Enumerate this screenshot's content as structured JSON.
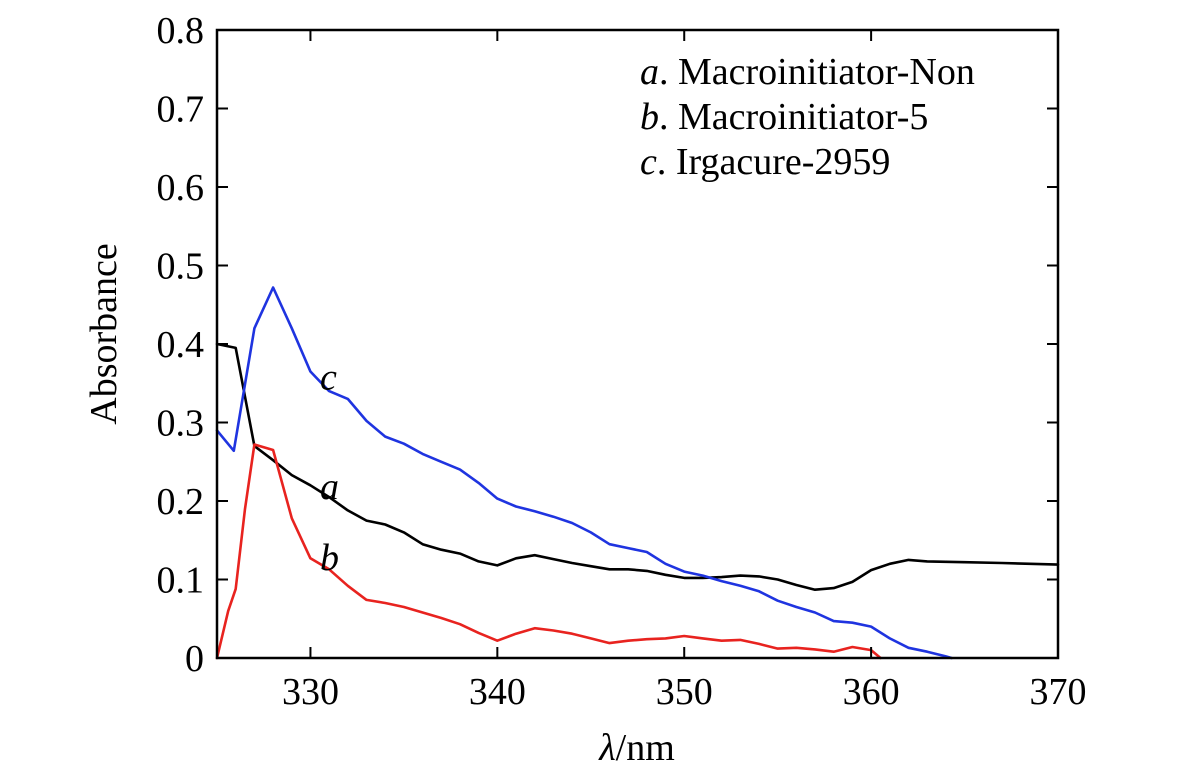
{
  "chart_data": {
    "type": "line",
    "xlabel_symbol": "λ",
    "xlabel_unit": "/nm",
    "ylabel": "Absorbance",
    "xlim": [
      325,
      370
    ],
    "ylim": [
      0,
      0.8
    ],
    "x_ticks": [
      330,
      340,
      350,
      360,
      370
    ],
    "y_ticks": [
      {
        "value": 0,
        "label": "0"
      },
      {
        "value": 0.1,
        "label": "0.1"
      },
      {
        "value": 0.2,
        "label": "0.2"
      },
      {
        "value": 0.3,
        "label": "0.3"
      },
      {
        "value": 0.4,
        "label": "0.4"
      },
      {
        "value": 0.5,
        "label": "0.5"
      },
      {
        "value": 0.6,
        "label": "0.6"
      },
      {
        "value": 0.7,
        "label": "0.7"
      },
      {
        "value": 0.8,
        "label": "0.8"
      }
    ],
    "legend_position": "top-right",
    "series": [
      {
        "key": "a",
        "letter": "a",
        "name": ". Macroinitiator-Non",
        "color": "#000000",
        "label_at": {
          "x": 326.5,
          "y": 0.215
        },
        "points": [
          [
            325,
            0.4
          ],
          [
            326,
            0.395
          ],
          [
            327,
            0.27
          ],
          [
            328,
            0.252
          ],
          [
            329,
            0.233
          ],
          [
            330,
            0.22
          ],
          [
            331,
            0.205
          ],
          [
            332,
            0.188
          ],
          [
            333,
            0.175
          ],
          [
            334,
            0.17
          ],
          [
            335,
            0.16
          ],
          [
            336,
            0.145
          ],
          [
            337,
            0.138
          ],
          [
            338,
            0.133
          ],
          [
            339,
            0.123
          ],
          [
            340,
            0.118
          ],
          [
            341,
            0.127
          ],
          [
            342,
            0.131
          ],
          [
            343,
            0.126
          ],
          [
            344,
            0.121
          ],
          [
            345,
            0.117
          ],
          [
            346,
            0.113
          ],
          [
            347,
            0.113
          ],
          [
            348,
            0.111
          ],
          [
            349,
            0.106
          ],
          [
            350,
            0.102
          ],
          [
            351,
            0.102
          ],
          [
            352,
            0.103
          ],
          [
            353,
            0.105
          ],
          [
            354,
            0.104
          ],
          [
            355,
            0.1
          ],
          [
            356,
            0.093
          ],
          [
            357,
            0.087
          ],
          [
            358,
            0.089
          ],
          [
            359,
            0.097
          ],
          [
            360,
            0.112
          ],
          [
            361,
            0.12
          ],
          [
            362,
            0.125
          ],
          [
            363,
            0.123
          ],
          [
            365,
            0.122
          ],
          [
            367,
            0.121
          ],
          [
            370,
            0.119
          ]
        ]
      },
      {
        "key": "b",
        "letter": "b",
        "name": ". Macroinitiator-5",
        "color": "#e8231f",
        "label_at": {
          "x": 326.5,
          "y": 0.125
        },
        "points": [
          [
            325,
            0.0
          ],
          [
            325.6,
            0.06
          ],
          [
            326,
            0.088
          ],
          [
            326.5,
            0.19
          ],
          [
            327,
            0.272
          ],
          [
            328,
            0.265
          ],
          [
            329,
            0.178
          ],
          [
            330,
            0.127
          ],
          [
            331,
            0.113
          ],
          [
            332,
            0.092
          ],
          [
            333,
            0.074
          ],
          [
            334,
            0.07
          ],
          [
            335,
            0.065
          ],
          [
            336,
            0.058
          ],
          [
            337,
            0.051
          ],
          [
            338,
            0.043
          ],
          [
            339,
            0.032
          ],
          [
            340,
            0.022
          ],
          [
            341,
            0.031
          ],
          [
            342,
            0.038
          ],
          [
            343,
            0.035
          ],
          [
            344,
            0.031
          ],
          [
            345,
            0.025
          ],
          [
            346,
            0.019
          ],
          [
            347,
            0.022
          ],
          [
            348,
            0.024
          ],
          [
            349,
            0.025
          ],
          [
            350,
            0.028
          ],
          [
            351,
            0.025
          ],
          [
            352,
            0.022
          ],
          [
            353,
            0.023
          ],
          [
            354,
            0.018
          ],
          [
            355,
            0.012
          ],
          [
            356,
            0.013
          ],
          [
            357,
            0.011
          ],
          [
            358,
            0.008
          ],
          [
            359,
            0.014
          ],
          [
            360,
            0.01
          ],
          [
            360.5,
            0.0
          ]
        ]
      },
      {
        "key": "c",
        "letter": "c",
        "name": ". Irgacure-2959",
        "color": "#1f34e0",
        "label_at": {
          "x": 326.5,
          "y": 0.355
        },
        "points": [
          [
            325,
            0.29
          ],
          [
            325.9,
            0.264
          ],
          [
            327,
            0.42
          ],
          [
            328,
            0.472
          ],
          [
            329,
            0.42
          ],
          [
            330,
            0.365
          ],
          [
            331,
            0.34
          ],
          [
            332,
            0.33
          ],
          [
            333,
            0.302
          ],
          [
            334,
            0.282
          ],
          [
            335,
            0.273
          ],
          [
            336,
            0.26
          ],
          [
            337,
            0.25
          ],
          [
            338,
            0.24
          ],
          [
            339,
            0.223
          ],
          [
            340,
            0.203
          ],
          [
            341,
            0.193
          ],
          [
            342,
            0.187
          ],
          [
            343,
            0.18
          ],
          [
            344,
            0.172
          ],
          [
            345,
            0.16
          ],
          [
            346,
            0.145
          ],
          [
            347,
            0.14
          ],
          [
            348,
            0.135
          ],
          [
            349,
            0.12
          ],
          [
            350,
            0.11
          ],
          [
            351,
            0.105
          ],
          [
            352,
            0.098
          ],
          [
            353,
            0.092
          ],
          [
            354,
            0.085
          ],
          [
            355,
            0.073
          ],
          [
            356,
            0.065
          ],
          [
            357,
            0.058
          ],
          [
            358,
            0.047
          ],
          [
            359,
            0.045
          ],
          [
            360,
            0.04
          ],
          [
            361,
            0.025
          ],
          [
            362,
            0.013
          ],
          [
            363,
            0.008
          ],
          [
            364,
            0.002
          ],
          [
            364.3,
            0.0
          ]
        ]
      }
    ]
  }
}
